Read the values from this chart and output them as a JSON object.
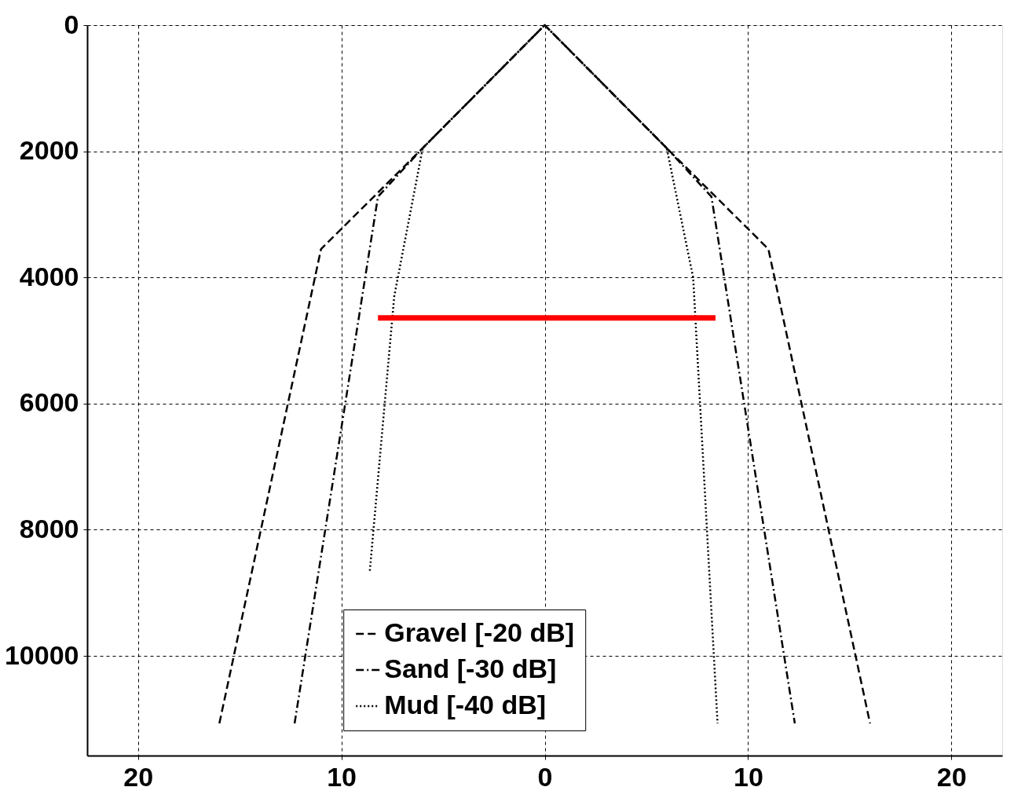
{
  "chart_data": {
    "type": "line",
    "xlim": [
      -22.5,
      22.5
    ],
    "ylim": [
      11580,
      0
    ],
    "xticks": [
      {
        "value": -20,
        "label": "20"
      },
      {
        "value": -10,
        "label": "10"
      },
      0,
      10,
      20
    ],
    "yticks": [
      0,
      2000,
      4000,
      6000,
      8000,
      10000
    ],
    "grid": true,
    "legend": "bottom",
    "series": [
      {
        "name": "Gravel [-20 dB]",
        "color": "#000000",
        "line_style": "dashed",
        "x": [
          -16,
          -11,
          -6,
          0,
          6,
          11,
          16
        ],
        "values": [
          11070,
          3550,
          1950,
          0,
          1950,
          3550,
          11070
        ]
      },
      {
        "name": "Sand [-30 dB]",
        "color": "#000000",
        "line_style": "dashdot",
        "x": [
          -12.3,
          -8.2,
          -6,
          0,
          6,
          8.2,
          12.3
        ],
        "values": [
          11070,
          2720,
          1950,
          0,
          1950,
          2720,
          11070
        ]
      },
      {
        "name": "Mud [-40 dB]",
        "color": "#000000",
        "line_style": "dotted",
        "x": [
          -8.6,
          -7.4,
          -6,
          0,
          6,
          7.3,
          8.5
        ],
        "values": [
          8650,
          4300,
          1950,
          0,
          1950,
          4000,
          11070
        ]
      },
      {
        "type": "line",
        "color": "#ff0000",
        "x": [
          -8.2,
          8.4
        ],
        "values": [
          4640,
          4640
        ]
      }
    ]
  }
}
